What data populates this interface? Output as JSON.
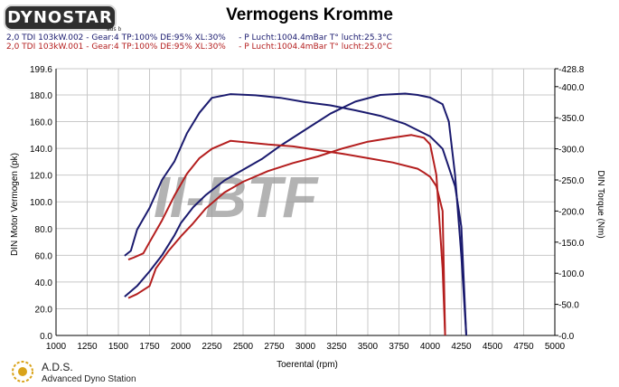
{
  "header": {
    "logo_text": "DYNOSTAR",
    "logo_subtext": "ads b",
    "title": "Vermogens Kromme"
  },
  "legend": [
    {
      "text": "2,0 TDI 103kW.002 - Gear:4 TP:100% DE:95% XL:30%     - P Lucht:1004.4mBar T° lucht:25.3°C",
      "color": "#1a1a6e"
    },
    {
      "text": "2,0 TDI 103kW.001 - Gear:4 TP:100% DE:95% XL:30%     - P Lucht:1004.4mBar T° lucht:25.0°C",
      "color": "#b41e1e"
    }
  ],
  "watermark": {
    "text": "II-BTF"
  },
  "footer": {
    "brand": "A.D.S.",
    "subtitle": "Advanced Dyno Station"
  },
  "colors": {
    "series_blue": "#1a1a6e",
    "series_red": "#b41e1e",
    "grid": "#c8c8c8",
    "watermark_gray": "#9a9a9a",
    "watermark_red": "#e02020"
  },
  "chart_data": {
    "type": "line",
    "xlabel": "Toerental (rpm)",
    "ylabel": "DIN Motor Vermogen (pk)",
    "y2label": "DIN Torque (Nm)",
    "xlim": [
      1000,
      5000
    ],
    "ylim": [
      0.0,
      199.6
    ],
    "y2lim": [
      0.0,
      428.8
    ],
    "x_ticks": [
      1000,
      1250,
      1500,
      1750,
      2000,
      2250,
      2500,
      2750,
      3000,
      3250,
      3500,
      3750,
      4000,
      4250,
      4500,
      4750,
      5000
    ],
    "y_ticks": [
      "0.0",
      "20.0",
      "40.0",
      "60.0",
      "80.0",
      "100.0",
      "120.0",
      "140.0",
      "160.0",
      "180.0",
      "199.6"
    ],
    "y2_ticks": [
      "-0.0",
      "-50.0",
      "-100.0",
      "-150.0",
      "-200.0",
      "-250.0",
      "-300.0",
      "-350.0",
      "-400.0",
      "-428.8"
    ],
    "grid": true,
    "series": [
      {
        "axis": "left",
        "color": "#1a1a6e",
        "x": [
          1550,
          1650,
          1750,
          1850,
          1950,
          2000,
          2100,
          2200,
          2350,
          2500,
          2650,
          2800,
          3000,
          3200,
          3400,
          3600,
          3800,
          3900,
          4000,
          4100,
          4150,
          4200,
          4250,
          4290
        ],
        "y": [
          29,
          37,
          48,
          60,
          75,
          84,
          96,
          105,
          116,
          124,
          132,
          142,
          154,
          166,
          175,
          180,
          181,
          180,
          178,
          173,
          160,
          120,
          60,
          0
        ]
      },
      {
        "axis": "right",
        "color": "#1a1a6e",
        "x": [
          1550,
          1600,
          1650,
          1750,
          1850,
          1950,
          2050,
          2150,
          2250,
          2400,
          2600,
          2800,
          3000,
          3200,
          3400,
          3600,
          3800,
          3900,
          4000,
          4050,
          4100,
          4150,
          4200,
          4250,
          4290
        ],
        "y": [
          128,
          136,
          170,
          205,
          250,
          280,
          325,
          358,
          382,
          388,
          386,
          382,
          375,
          370,
          362,
          353,
          340,
          330,
          320,
          310,
          300,
          270,
          240,
          175,
          0
        ]
      },
      {
        "axis": "left",
        "color": "#b41e1e",
        "x": [
          1580,
          1650,
          1750,
          1800,
          1900,
          2000,
          2100,
          2200,
          2350,
          2500,
          2700,
          2900,
          3100,
          3300,
          3500,
          3700,
          3850,
          3950,
          4000,
          4050,
          4100,
          4120
        ],
        "y": [
          28,
          31,
          37,
          50,
          63,
          74,
          84,
          95,
          107,
          115,
          123,
          129,
          134,
          140,
          145,
          148,
          150,
          148,
          143,
          120,
          50,
          0
        ]
      },
      {
        "axis": "right",
        "color": "#b41e1e",
        "x": [
          1580,
          1620,
          1700,
          1750,
          1850,
          1950,
          2050,
          2150,
          2250,
          2400,
          2550,
          2700,
          2900,
          3100,
          3300,
          3500,
          3700,
          3900,
          3950,
          4000,
          4050,
          4100,
          4120
        ],
        "y": [
          122,
          125,
          132,
          150,
          185,
          225,
          260,
          285,
          300,
          313,
          310,
          307,
          304,
          298,
          292,
          285,
          278,
          268,
          262,
          255,
          240,
          200,
          0
        ]
      }
    ]
  }
}
